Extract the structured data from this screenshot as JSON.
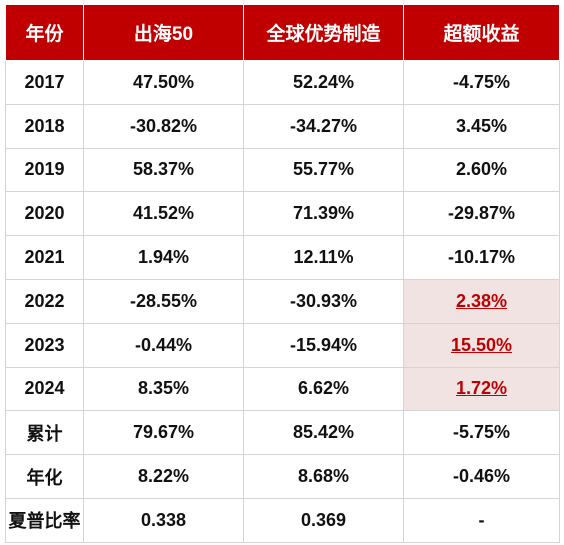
{
  "table": {
    "headers": [
      "年份",
      "出海50",
      "全球优势制造",
      "超额收益"
    ],
    "rows": [
      {
        "label": "2017",
        "chuhai50": "47.50%",
        "global_mfg": "52.24%",
        "excess": "-4.75%",
        "highlight": false
      },
      {
        "label": "2018",
        "chuhai50": "-30.82%",
        "global_mfg": "-34.27%",
        "excess": "3.45%",
        "highlight": false
      },
      {
        "label": "2019",
        "chuhai50": "58.37%",
        "global_mfg": "55.77%",
        "excess": "2.60%",
        "highlight": false
      },
      {
        "label": "2020",
        "chuhai50": "41.52%",
        "global_mfg": "71.39%",
        "excess": "-29.87%",
        "highlight": false
      },
      {
        "label": "2021",
        "chuhai50": "1.94%",
        "global_mfg": "12.11%",
        "excess": "-10.17%",
        "highlight": false
      },
      {
        "label": "2022",
        "chuhai50": "-28.55%",
        "global_mfg": "-30.93%",
        "excess": "2.38%",
        "highlight": true
      },
      {
        "label": "2023",
        "chuhai50": "-0.44%",
        "global_mfg": "-15.94%",
        "excess": "15.50%",
        "highlight": true
      },
      {
        "label": "2024",
        "chuhai50": "8.35%",
        "global_mfg": "6.62%",
        "excess": "1.72%",
        "highlight": true
      },
      {
        "label": "累计",
        "chuhai50": "79.67%",
        "global_mfg": "85.42%",
        "excess": "-5.75%",
        "highlight": false
      },
      {
        "label": "年化",
        "chuhai50": "8.22%",
        "global_mfg": "8.68%",
        "excess": "-0.46%",
        "highlight": false
      },
      {
        "label": "夏普比率",
        "chuhai50": "0.338",
        "global_mfg": "0.369",
        "excess": "-",
        "highlight": false
      }
    ]
  },
  "colors": {
    "header_bg": "#c00000",
    "header_text": "#ffffff",
    "highlight_bg": "#f2e3e3",
    "highlight_text": "#c00000",
    "grid": "#d4d4d4"
  }
}
